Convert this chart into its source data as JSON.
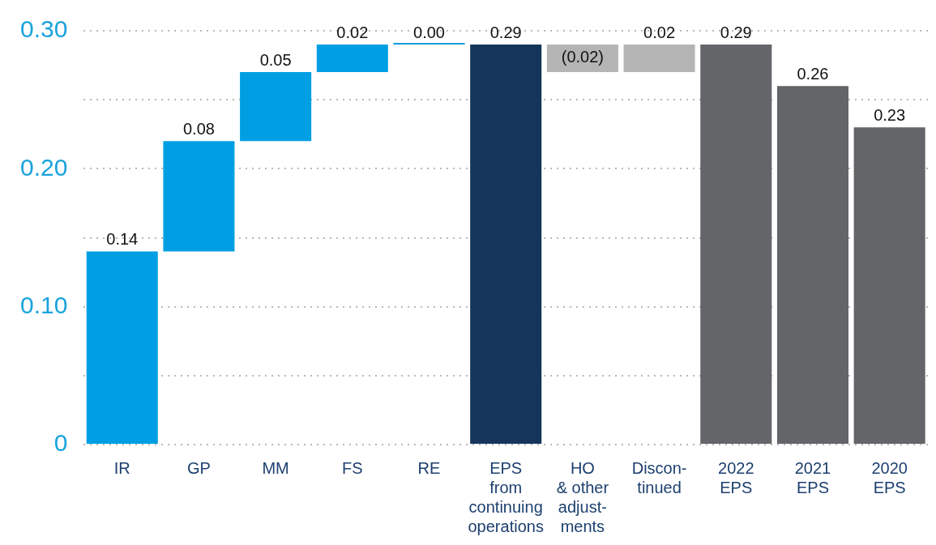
{
  "chart_data": {
    "type": "bar",
    "categories": [
      "IR",
      "GP",
      "MM",
      "FS",
      "RE",
      "EPS\nfrom\ncontinuing\noperations",
      "HO\n& other\nadjust-\nments",
      "Discon-\ntinued",
      "2022\nEPS",
      "2021\nEPS",
      "2020\nEPS"
    ],
    "values": [
      0.14,
      0.08,
      0.05,
      0.02,
      0.0,
      0.29,
      -0.02,
      0.02,
      0.29,
      0.26,
      0.23
    ],
    "base": [
      0,
      0.14,
      0.22,
      0.27,
      0.29,
      0,
      0.29,
      0.27,
      0,
      0,
      0
    ],
    "colors": [
      "#009fe3",
      "#009fe3",
      "#009fe3",
      "#009fe3",
      "#009fe3",
      "#15365a",
      "#b4b4b4",
      "#b4b4b4",
      "#636569",
      "#636569",
      "#636569"
    ],
    "value_labels": [
      "0.14",
      "0.08",
      "0.05",
      "0.02",
      "0.00",
      "0.29",
      "(0.02)",
      "0.02",
      "0.29",
      "0.26",
      "0.23"
    ],
    "ylim": [
      0,
      0.3
    ],
    "yticks": [
      0,
      {
        "value": 0.05,
        "label": null
      },
      {
        "value": 0.1,
        "label": "0.10"
      },
      {
        "value": 0.15,
        "label": null
      },
      {
        "value": 0.2,
        "label": "0.20"
      },
      {
        "value": 0.25,
        "label": null
      },
      {
        "value": 0.3,
        "label": "0.30"
      }
    ],
    "grid": "y"
  }
}
